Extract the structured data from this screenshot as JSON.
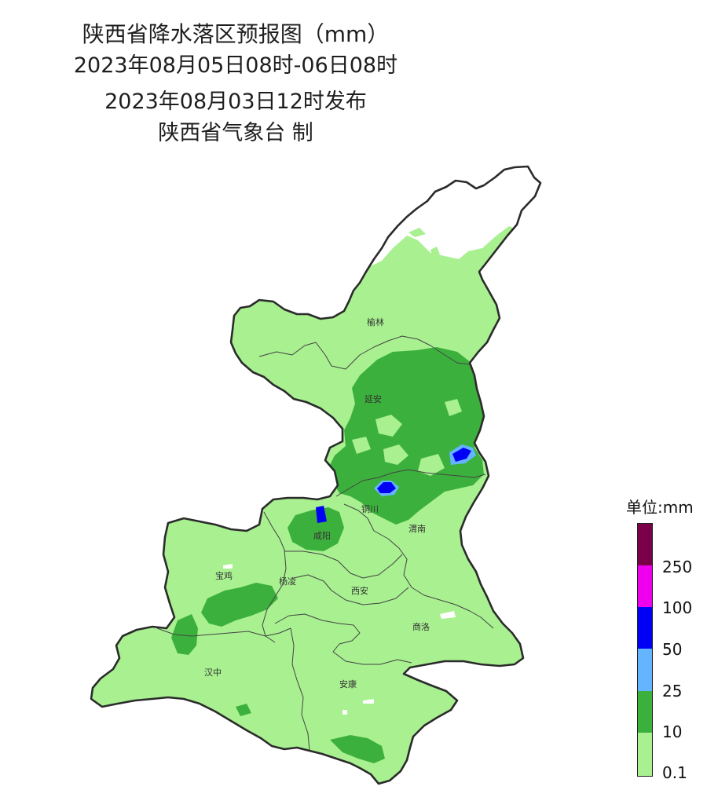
{
  "header": {
    "title": "陕西省降水落区预报图（mm）",
    "valid_period": "2023年08月05日08时-06日08时",
    "issued": "2023年08月03日12时发布",
    "producer": "陕西省气象台 制"
  },
  "legend": {
    "unit_label": "单位:mm",
    "bins": [
      {
        "range": [
          250,
          null
        ],
        "color": "#7a0049"
      },
      {
        "range": [
          100,
          250
        ],
        "color": "#ee00ee"
      },
      {
        "range": [
          50,
          100
        ],
        "color": "#0000f5"
      },
      {
        "range": [
          25,
          50
        ],
        "color": "#64b4ff"
      },
      {
        "range": [
          10,
          25
        ],
        "color": "#3cb03c"
      },
      {
        "range": [
          0.1,
          10
        ],
        "color": "#a8f090"
      }
    ],
    "ticks": [
      "250",
      "100",
      "50",
      "25",
      "10",
      "0.1"
    ]
  },
  "map": {
    "region": "陕西省",
    "cities": [
      {
        "name": "榆林"
      },
      {
        "name": "延安"
      },
      {
        "name": "铜川"
      },
      {
        "name": "渭南"
      },
      {
        "name": "咸阳"
      },
      {
        "name": "宝鸡"
      },
      {
        "name": "杨凌"
      },
      {
        "name": "西安"
      },
      {
        "name": "商洛"
      },
      {
        "name": "汉中"
      },
      {
        "name": "安康"
      }
    ]
  }
}
